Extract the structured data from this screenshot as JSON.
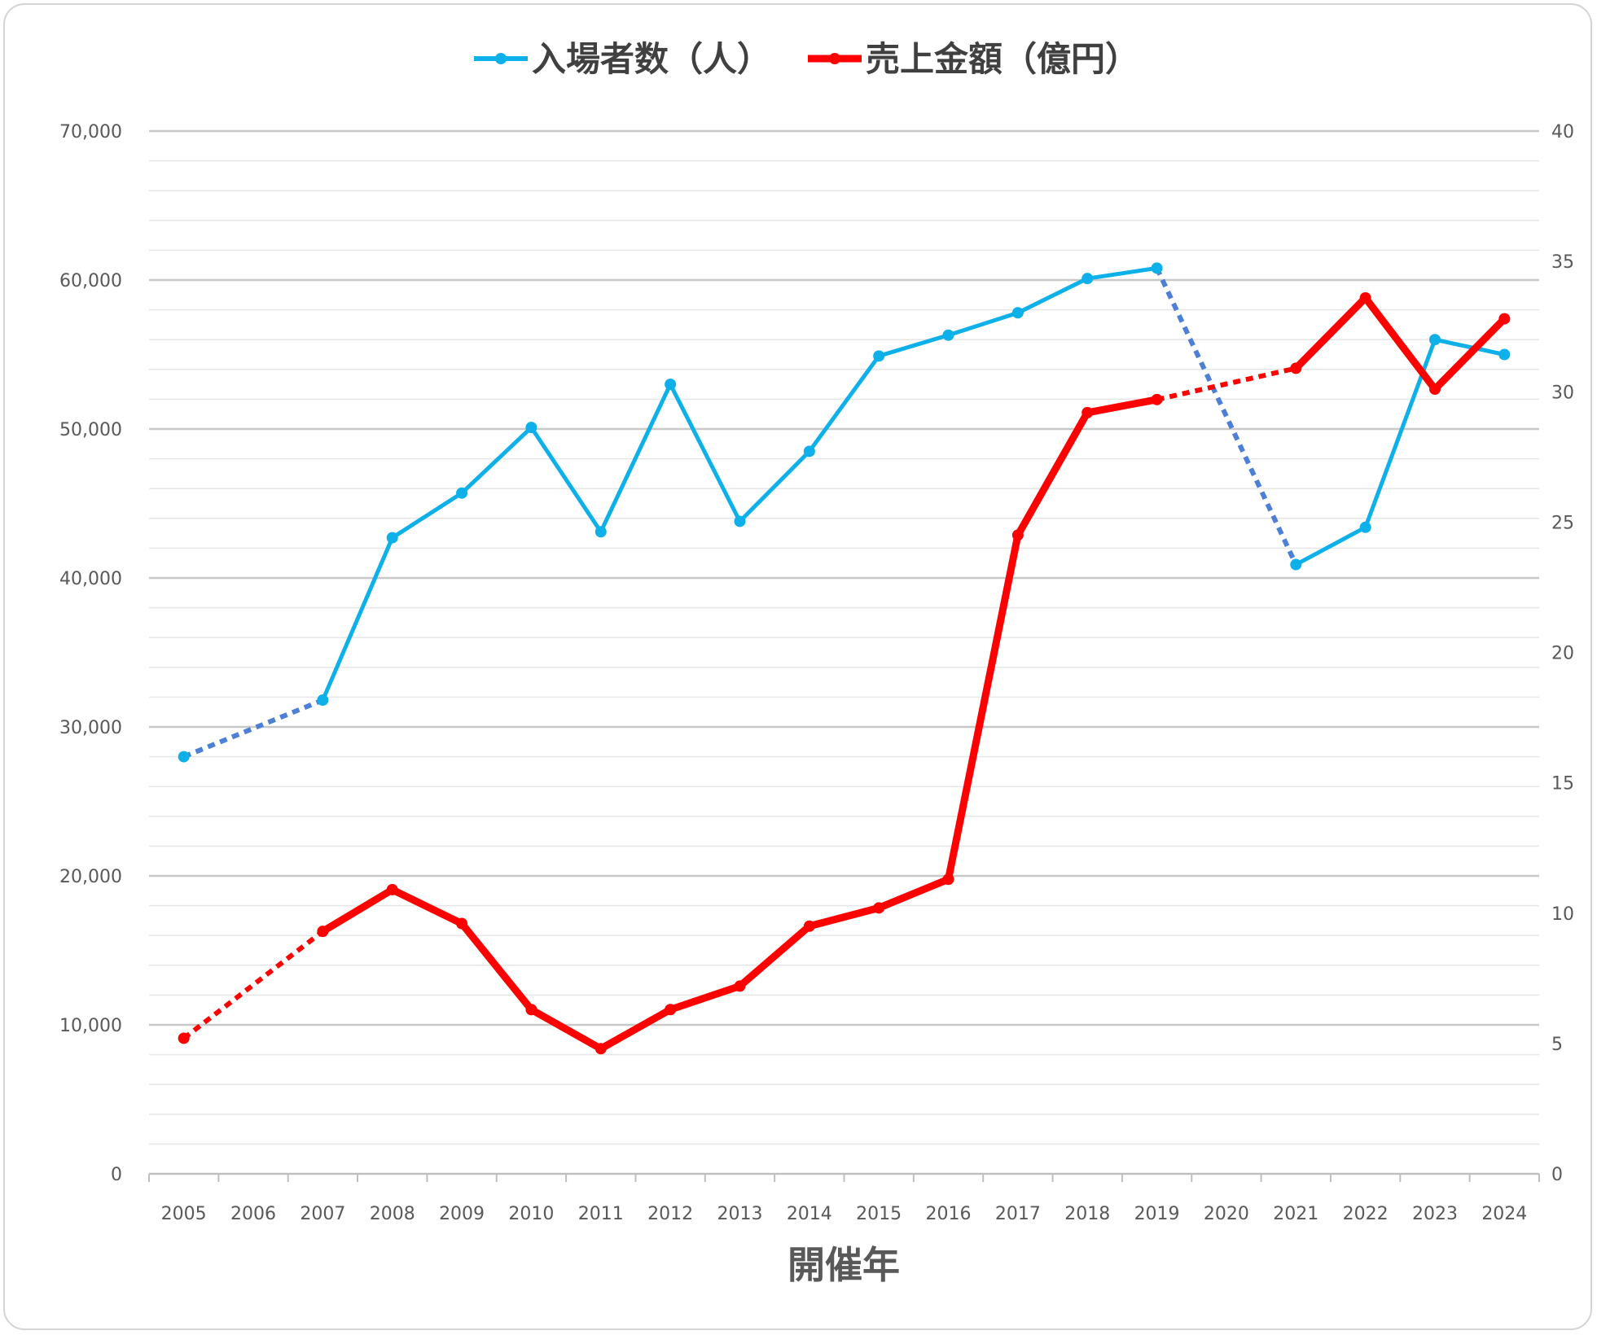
{
  "chart_data": {
    "type": "line",
    "categories": [
      "2005",
      "2006",
      "2007",
      "2008",
      "2009",
      "2010",
      "2011",
      "2012",
      "2013",
      "2014",
      "2015",
      "2016",
      "2017",
      "2018",
      "2019",
      "2020",
      "2021",
      "2022",
      "2023",
      "2024"
    ],
    "xlabel": "開催年",
    "y_left": {
      "min": 0,
      "max": 70000,
      "major_step": 10000,
      "minor_step": 2000,
      "tick_labels": [
        "0",
        "10,000",
        "20,000",
        "30,000",
        "40,000",
        "50,000",
        "60,000",
        "70,000"
      ]
    },
    "y_right": {
      "min": 0,
      "max": 40,
      "major_step": 5,
      "tick_labels": [
        "0",
        "5",
        "10",
        "15",
        "20",
        "25",
        "30",
        "35",
        "40"
      ]
    },
    "grid": true,
    "legend": {
      "placement": "top-center"
    },
    "series": [
      {
        "name": "入場者数（人）",
        "axis": "left",
        "color": "#0eb0ea",
        "dash_color": "#4d7fd6",
        "values": [
          28000,
          null,
          31800,
          42700,
          45700,
          50100,
          43100,
          53000,
          43800,
          48500,
          54900,
          56300,
          57800,
          60100,
          60800,
          null,
          40900,
          43400,
          56000,
          55000
        ]
      },
      {
        "name": "売上金額（億円）",
        "axis": "right",
        "color": "#ff0000",
        "dash_color": "#ff0000",
        "values": [
          5.2,
          null,
          9.3,
          10.9,
          9.6,
          6.3,
          4.8,
          6.3,
          7.2,
          9.5,
          10.2,
          11.3,
          24.5,
          29.2,
          29.7,
          null,
          30.9,
          33.6,
          30.1,
          32.8
        ]
      }
    ]
  }
}
